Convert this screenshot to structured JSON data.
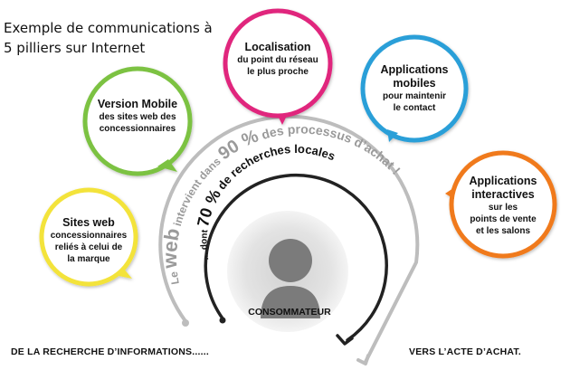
{
  "caption": {
    "line1": "Exemple de communications à",
    "line2": "5 pilliers sur Internet"
  },
  "bubbles": [
    {
      "id": "sites-web",
      "title": "Sites web",
      "subtitle_lines": [
        "concessionnaires",
        "reliés à celui de",
        "la marque"
      ],
      "color": "#f3e33a"
    },
    {
      "id": "version-mobile",
      "title": "Version Mobile",
      "subtitle_lines": [
        "des sites web des",
        "concessionnaires"
      ],
      "color": "#7cc242"
    },
    {
      "id": "localisation",
      "title": "Localisation",
      "subtitle_lines": [
        "du point du réseau",
        "le plus proche"
      ],
      "color": "#e0277d"
    },
    {
      "id": "applications-mobiles",
      "title": "Applications mobiles",
      "subtitle_lines": [
        "pour maintenir",
        "le contact"
      ],
      "color": "#2a9fd8"
    },
    {
      "id": "applications-interactives",
      "title": "Applications interactives",
      "subtitle_lines": [
        "sur les",
        "points de vente",
        "et les salons"
      ],
      "color": "#f07a1a"
    }
  ],
  "arcs": {
    "outer": {
      "prefix": "Le ",
      "word": "web",
      "middle": " intervient dans ",
      "pct": "90 %",
      "suffix": " des processus d’achat !"
    },
    "inner": {
      "prefix": "... dont ",
      "pct": "70 %",
      "suffix": " de recherches locales"
    }
  },
  "consumer_label": "CONSOMMATEUR",
  "bottom": {
    "left": "DE LA RECHERCHE D’INFORMATIONS......",
    "right": "VERS L’ACTE D’ACHAT."
  }
}
